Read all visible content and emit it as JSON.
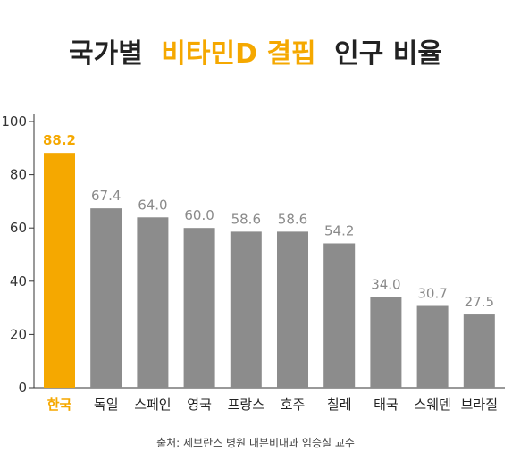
{
  "chart_data": {
    "type": "bar",
    "title": {
      "part1": "국가별",
      "part2": "비타민D 결핍",
      "part3": "인구 비율"
    },
    "categories": [
      "한국",
      "독일",
      "스페인",
      "영국",
      "프랑스",
      "호주",
      "칠레",
      "태국",
      "스웨덴",
      "브라질"
    ],
    "values": [
      88.2,
      67.4,
      64.0,
      60.0,
      58.6,
      58.6,
      54.2,
      34.0,
      30.7,
      27.5
    ],
    "value_labels": [
      "88.2",
      "67.4",
      "64.0",
      "60.0",
      "58.6",
      "58.6",
      "54.2",
      "34.0",
      "30.7",
      "27.5"
    ],
    "highlight_index": 0,
    "ylim": [
      0,
      100
    ],
    "yticks": [
      0,
      20,
      40,
      60,
      80,
      100
    ],
    "ytick_labels": [
      "0",
      "20",
      "40",
      "60",
      "80",
      "100"
    ],
    "xlabel": "",
    "ylabel": "",
    "grid": false,
    "legend": "none",
    "colors": {
      "bar": "#8c8c8c",
      "highlight": "#f5a800",
      "title": "#222222",
      "accent": "#f5a800"
    },
    "source": "출처: 세브란스 병원 내분비내과 임승실 교수"
  }
}
